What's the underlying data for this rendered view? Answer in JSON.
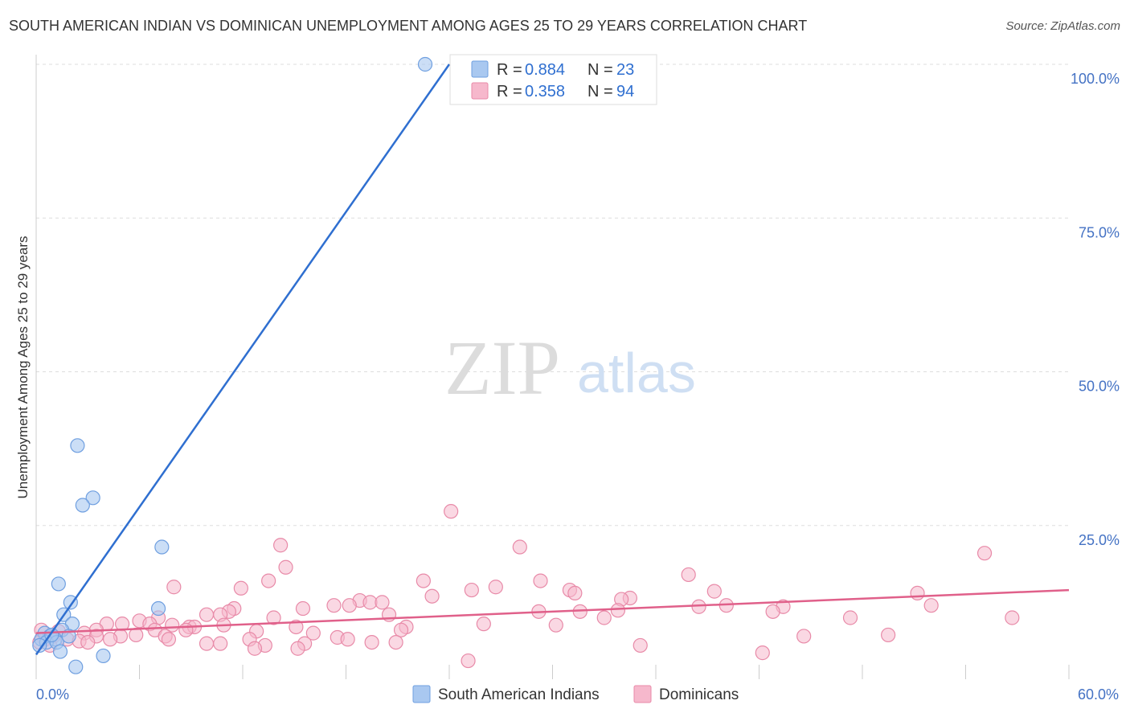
{
  "header": {
    "title": "SOUTH AMERICAN INDIAN VS DOMINICAN UNEMPLOYMENT AMONG AGES 25 TO 29 YEARS CORRELATION CHART",
    "source": "Source: ZipAtlas.com"
  },
  "watermark": {
    "zip": "ZIP",
    "atlas": "atlas"
  },
  "legend_box": {
    "rows": [
      {
        "r_label": "R = ",
        "r_value": "0.884",
        "n_label": "N = ",
        "n_value": "23",
        "color": "#a9c8f0"
      },
      {
        "r_label": "R = ",
        "r_value": "0.358",
        "n_label": "N = ",
        "n_value": "94",
        "color": "#f6b8cc"
      }
    ]
  },
  "bottom_legend": {
    "items": [
      {
        "label": "South American Indians",
        "color": "#a9c8f0"
      },
      {
        "label": "Dominicans",
        "color": "#f6b8cc"
      }
    ]
  },
  "colors": {
    "blue_fill": "#a9c8f0",
    "blue_stroke": "#6f9fe0",
    "blue_line": "#2f6fd0",
    "pink_fill": "#f6b8cc",
    "pink_stroke": "#e88aa8",
    "pink_line": "#e0608a",
    "grid": "#dddddd",
    "tick_label": "#4472c4"
  },
  "chart_data": {
    "type": "scatter",
    "title": "SOUTH AMERICAN INDIAN VS DOMINICAN UNEMPLOYMENT AMONG AGES 25 TO 29 YEARS CORRELATION CHART",
    "xlabel": "",
    "ylabel": "Unemployment Among Ages 25 to 29 years",
    "xlim": [
      0,
      60
    ],
    "ylim": [
      0,
      100
    ],
    "x_tick_labels": [
      {
        "value": 0,
        "label": "0.0%"
      },
      {
        "value": 60,
        "label": "60.0%"
      }
    ],
    "y_tick_labels": [
      {
        "value": 25,
        "label": "25.0%"
      },
      {
        "value": 50,
        "label": "50.0%"
      },
      {
        "value": 75,
        "label": "75.0%"
      },
      {
        "value": 100,
        "label": "100.0%"
      }
    ],
    "x_minor_ticks": [
      6,
      12,
      18,
      24,
      30,
      36,
      42,
      48,
      54,
      60
    ],
    "series": [
      {
        "name": "South American Indians",
        "R": 0.884,
        "N": 23,
        "trend": {
          "x": [
            0.0,
            24.0
          ],
          "y": [
            4.0,
            100.0
          ]
        },
        "points": [
          {
            "x": 22.6,
            "y": 100.0
          },
          {
            "x": 2.4,
            "y": 38.0
          },
          {
            "x": 3.3,
            "y": 29.5
          },
          {
            "x": 2.7,
            "y": 28.3
          },
          {
            "x": 7.3,
            "y": 21.5
          },
          {
            "x": 1.3,
            "y": 15.5
          },
          {
            "x": 2.0,
            "y": 12.5
          },
          {
            "x": 7.1,
            "y": 11.5
          },
          {
            "x": 1.6,
            "y": 10.5
          },
          {
            "x": 2.1,
            "y": 9.0
          },
          {
            "x": 1.5,
            "y": 8.0
          },
          {
            "x": 0.5,
            "y": 7.5
          },
          {
            "x": 0.8,
            "y": 7.0
          },
          {
            "x": 1.9,
            "y": 7.0
          },
          {
            "x": 0.3,
            "y": 6.5
          },
          {
            "x": 1.1,
            "y": 6.5
          },
          {
            "x": 0.6,
            "y": 6.0
          },
          {
            "x": 1.2,
            "y": 6.0
          },
          {
            "x": 0.2,
            "y": 5.5
          },
          {
            "x": 1.4,
            "y": 4.5
          },
          {
            "x": 3.9,
            "y": 3.8
          },
          {
            "x": 2.3,
            "y": 2.0
          },
          {
            "x": 0.9,
            "y": 7.2
          }
        ]
      },
      {
        "name": "Dominicans",
        "R": 0.358,
        "N": 94,
        "trend": {
          "x": [
            0.0,
            60.0
          ],
          "y": [
            7.5,
            14.5
          ]
        },
        "points": [
          {
            "x": 24.1,
            "y": 27.3
          },
          {
            "x": 28.1,
            "y": 21.5
          },
          {
            "x": 14.2,
            "y": 21.8
          },
          {
            "x": 14.5,
            "y": 18.2
          },
          {
            "x": 55.1,
            "y": 20.5
          },
          {
            "x": 37.9,
            "y": 17.0
          },
          {
            "x": 22.5,
            "y": 16.0
          },
          {
            "x": 29.3,
            "y": 16.0
          },
          {
            "x": 13.5,
            "y": 16.0
          },
          {
            "x": 8.0,
            "y": 15.0
          },
          {
            "x": 11.9,
            "y": 14.8
          },
          {
            "x": 25.3,
            "y": 14.5
          },
          {
            "x": 26.7,
            "y": 15.0
          },
          {
            "x": 31.0,
            "y": 14.5
          },
          {
            "x": 31.3,
            "y": 14.0
          },
          {
            "x": 39.4,
            "y": 14.3
          },
          {
            "x": 51.2,
            "y": 14.0
          },
          {
            "x": 23.0,
            "y": 13.5
          },
          {
            "x": 34.5,
            "y": 13.2
          },
          {
            "x": 34.0,
            "y": 13.0
          },
          {
            "x": 18.8,
            "y": 12.8
          },
          {
            "x": 19.4,
            "y": 12.5
          },
          {
            "x": 20.1,
            "y": 12.5
          },
          {
            "x": 17.3,
            "y": 12.0
          },
          {
            "x": 18.2,
            "y": 12.0
          },
          {
            "x": 40.1,
            "y": 12.0
          },
          {
            "x": 52.0,
            "y": 12.0
          },
          {
            "x": 43.4,
            "y": 11.8
          },
          {
            "x": 11.5,
            "y": 11.5
          },
          {
            "x": 11.2,
            "y": 11.0
          },
          {
            "x": 15.5,
            "y": 11.5
          },
          {
            "x": 38.5,
            "y": 11.8
          },
          {
            "x": 29.2,
            "y": 11.0
          },
          {
            "x": 31.6,
            "y": 11.0
          },
          {
            "x": 33.8,
            "y": 11.2
          },
          {
            "x": 42.8,
            "y": 11.0
          },
          {
            "x": 9.9,
            "y": 10.5
          },
          {
            "x": 10.7,
            "y": 10.5
          },
          {
            "x": 7.1,
            "y": 10.0
          },
          {
            "x": 13.8,
            "y": 10.0
          },
          {
            "x": 20.5,
            "y": 10.5
          },
          {
            "x": 47.3,
            "y": 10.0
          },
          {
            "x": 56.7,
            "y": 10.0
          },
          {
            "x": 6.0,
            "y": 9.5
          },
          {
            "x": 6.6,
            "y": 9.0
          },
          {
            "x": 5.0,
            "y": 9.0
          },
          {
            "x": 4.1,
            "y": 9.0
          },
          {
            "x": 7.9,
            "y": 8.8
          },
          {
            "x": 8.9,
            "y": 8.5
          },
          {
            "x": 9.2,
            "y": 8.5
          },
          {
            "x": 10.9,
            "y": 8.8
          },
          {
            "x": 15.1,
            "y": 8.5
          },
          {
            "x": 21.5,
            "y": 8.5
          },
          {
            "x": 21.2,
            "y": 8.0
          },
          {
            "x": 30.2,
            "y": 8.8
          },
          {
            "x": 6.9,
            "y": 8.0
          },
          {
            "x": 8.7,
            "y": 8.0
          },
          {
            "x": 3.5,
            "y": 8.0
          },
          {
            "x": 12.8,
            "y": 7.8
          },
          {
            "x": 16.1,
            "y": 7.5
          },
          {
            "x": 2.8,
            "y": 7.5
          },
          {
            "x": 4.9,
            "y": 7.0
          },
          {
            "x": 3.5,
            "y": 7.0
          },
          {
            "x": 5.8,
            "y": 7.2
          },
          {
            "x": 7.5,
            "y": 7.0
          },
          {
            "x": 12.4,
            "y": 6.5
          },
          {
            "x": 17.5,
            "y": 6.8
          },
          {
            "x": 18.1,
            "y": 6.5
          },
          {
            "x": 44.6,
            "y": 7.0
          },
          {
            "x": 49.5,
            "y": 7.2
          },
          {
            "x": 1.0,
            "y": 7.0
          },
          {
            "x": 1.8,
            "y": 6.5
          },
          {
            "x": 0.5,
            "y": 6.5
          },
          {
            "x": 2.5,
            "y": 6.2
          },
          {
            "x": 4.3,
            "y": 6.5
          },
          {
            "x": 7.7,
            "y": 6.5
          },
          {
            "x": 0.2,
            "y": 6.0
          },
          {
            "x": 9.9,
            "y": 5.8
          },
          {
            "x": 10.7,
            "y": 5.8
          },
          {
            "x": 13.3,
            "y": 5.5
          },
          {
            "x": 15.6,
            "y": 5.8
          },
          {
            "x": 20.9,
            "y": 6.0
          },
          {
            "x": 35.1,
            "y": 5.5
          },
          {
            "x": 12.7,
            "y": 5.0
          },
          {
            "x": 15.2,
            "y": 5.0
          },
          {
            "x": 42.2,
            "y": 4.3
          },
          {
            "x": 25.1,
            "y": 3.0
          },
          {
            "x": 0.3,
            "y": 8.0
          },
          {
            "x": 1.3,
            "y": 7.8
          },
          {
            "x": 0.8,
            "y": 5.5
          },
          {
            "x": 3.0,
            "y": 6.0
          },
          {
            "x": 19.5,
            "y": 6.0
          },
          {
            "x": 26.0,
            "y": 9.0
          },
          {
            "x": 33.0,
            "y": 10.0
          }
        ]
      }
    ]
  }
}
